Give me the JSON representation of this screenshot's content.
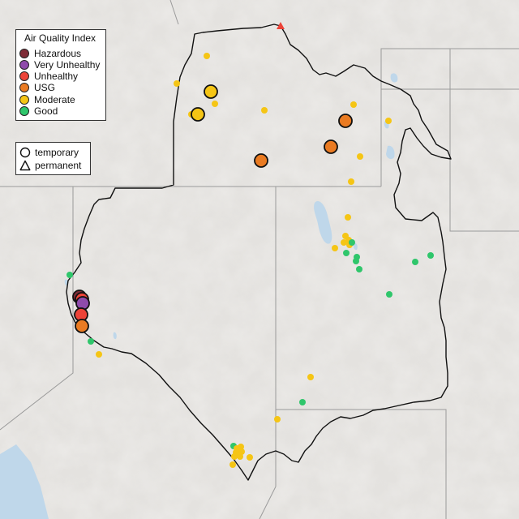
{
  "legend": {
    "title": "Air Quality Index",
    "categories": [
      {
        "label": "Hazardous",
        "color": "#7e2b36"
      },
      {
        "label": "Very Unhealthy",
        "color": "#8f4bab"
      },
      {
        "label": "Unhealthy",
        "color": "#ec4338"
      },
      {
        "label": "USG",
        "color": "#ea7b22"
      },
      {
        "label": "Moderate",
        "color": "#f5c515"
      },
      {
        "label": "Good",
        "color": "#2fc66b"
      }
    ],
    "types": [
      {
        "label": "temporary",
        "shape": "circle-icon"
      },
      {
        "label": "permanent",
        "shape": "triangle-icon"
      }
    ]
  },
  "colors": {
    "terrain": "#e4e2df",
    "water": "#bfd7ea",
    "boundary": "#111111",
    "state_lines": "#9a9a9a"
  },
  "map_layers": [
    "terrain",
    "state-boundaries",
    "region-outline",
    "monitors"
  ]
}
